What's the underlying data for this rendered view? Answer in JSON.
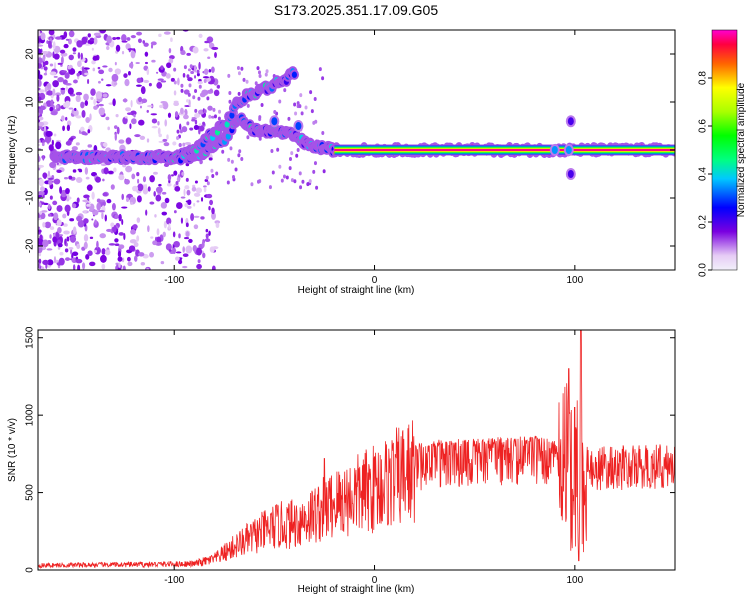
{
  "figure": {
    "title": "S173.2025.351.17.09.G05"
  },
  "chart_data": [
    {
      "type": "heatmap",
      "id": "spectrogram",
      "xlabel": "Height of straight line (km)",
      "ylabel": "Frequency (Hz)",
      "xlim": [
        -168,
        150
      ],
      "ylim": [
        -25,
        25
      ],
      "xticks": [
        -100,
        0,
        100
      ],
      "yticks": [
        -20,
        -10,
        0,
        10,
        20
      ],
      "colorbar": {
        "label": "Normalized spectral amplitude",
        "range": [
          0,
          1
        ],
        "ticks": [
          0.0,
          0.2,
          0.4,
          0.6,
          0.8
        ]
      },
      "ridges": [
        {
          "name": "constant_tone",
          "points": [
            [
              -160,
              -1.5
            ],
            [
              -120,
              -1.5
            ],
            [
              -90,
              -1.5
            ],
            [
              -75,
              2
            ],
            [
              -68,
              7
            ],
            [
              -60,
              4
            ],
            [
              -50,
              4
            ],
            [
              -40,
              3
            ],
            [
              -33,
              1
            ],
            [
              -20,
              0
            ],
            [
              0,
              0
            ],
            [
              50,
              0
            ],
            [
              100,
              0
            ],
            [
              150,
              0
            ]
          ]
        },
        {
          "name": "doppler_branch",
          "points": [
            [
              -100,
              -2
            ],
            [
              -90,
              0
            ],
            [
              -82,
              3
            ],
            [
              -75,
              5
            ],
            [
              -68,
              10
            ],
            [
              -60,
              12
            ],
            [
              -48,
              14
            ],
            [
              -40,
              16
            ]
          ]
        }
      ],
      "features": [
        {
          "x": -50,
          "y": 6,
          "amplitude": 0.3
        },
        {
          "x": -38,
          "y": 5,
          "amplitude": 0.3
        },
        {
          "x": 90,
          "y": 0,
          "amplitude": 0.35
        },
        {
          "x": 97,
          "y": 0,
          "amplitude": 0.35
        },
        {
          "x": 98,
          "y": 6,
          "amplitude": 0.2
        },
        {
          "x": 98,
          "y": -5,
          "amplitude": 0.2
        }
      ]
    },
    {
      "type": "line",
      "id": "snr",
      "xlabel": "Height of straight line (km)",
      "ylabel": "SNR (10 * v/v)",
      "xlim": [
        -168,
        150
      ],
      "ylim": [
        0,
        1550
      ],
      "xticks": [
        -100,
        0,
        100
      ],
      "yticks": [
        0,
        500,
        1000,
        1500
      ],
      "series": [
        {
          "name": "SNR",
          "color": "#ee2222",
          "envelope": {
            "x": [
              -168,
              -120,
              -90,
              -80,
              -70,
              -60,
              -50,
              -40,
              -30,
              -20,
              -10,
              0,
              10,
              20,
              30,
              50,
              80,
              100,
              150
            ],
            "y": [
              30,
              35,
              40,
              70,
              150,
              220,
              280,
              300,
              360,
              430,
              480,
              530,
              590,
              650,
              680,
              690,
              710,
              650,
              670
            ]
          },
          "spikes": [
            {
              "x": -25,
              "y": 720
            },
            {
              "x": 97,
              "y": 1300
            },
            {
              "x": 100,
              "y": 1050
            },
            {
              "x": 103,
              "y": 1550
            },
            {
              "x": 102,
              "y": 60
            }
          ]
        }
      ]
    }
  ]
}
